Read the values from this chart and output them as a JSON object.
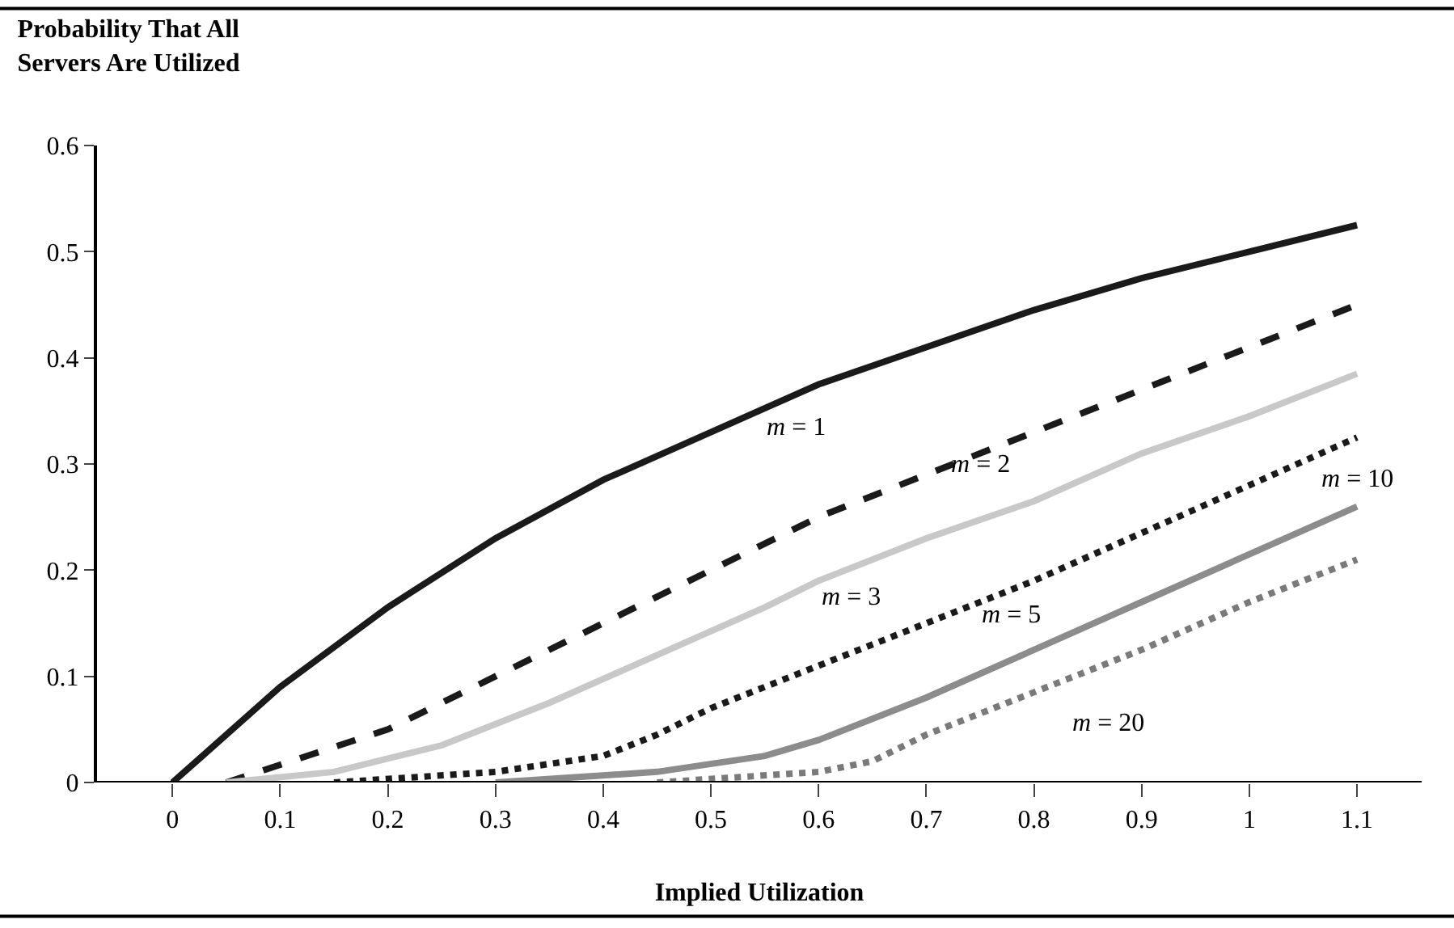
{
  "chart_data": {
    "type": "line",
    "title": "Probability That All Servers Are Utilized",
    "xlabel": "Implied Utilization",
    "xlim": [
      -0.07,
      1.16
    ],
    "xticks": [
      0,
      0.1,
      0.2,
      0.3,
      0.4,
      0.5,
      0.6,
      0.7,
      0.8,
      0.9,
      1,
      1.1
    ],
    "ylim": [
      0,
      0.6
    ],
    "yticks": [
      0,
      0.1,
      0.2,
      0.3,
      0.4,
      0.5,
      0.6
    ],
    "legend": false,
    "marker": "none",
    "series": [
      {
        "name": "m = 1",
        "color": "#1a1a1a",
        "line_style": "solid",
        "x": [
          0,
          0.1,
          0.2,
          0.3,
          0.4,
          0.5,
          0.6,
          0.7,
          0.8,
          0.9,
          1.0,
          1.1
        ],
        "values": [
          0,
          0.09,
          0.165,
          0.23,
          0.285,
          0.33,
          0.375,
          0.41,
          0.445,
          0.475,
          0.5,
          0.525
        ]
      },
      {
        "name": "m = 2",
        "color": "#1a1a1a",
        "line_style": "dashed",
        "x": [
          0.05,
          0.2,
          0.3,
          0.4,
          0.5,
          0.6,
          0.7,
          0.8,
          0.9,
          1.0,
          1.1
        ],
        "values": [
          0,
          0.05,
          0.1,
          0.15,
          0.2,
          0.25,
          0.29,
          0.33,
          0.37,
          0.41,
          0.45
        ]
      },
      {
        "name": "m = 3",
        "color": "#c8c8c8",
        "line_style": "solid",
        "x": [
          0.05,
          0.15,
          0.25,
          0.35,
          0.45,
          0.55,
          0.6,
          0.7,
          0.8,
          0.9,
          1.0,
          1.1
        ],
        "values": [
          0,
          0.01,
          0.035,
          0.075,
          0.12,
          0.165,
          0.19,
          0.23,
          0.265,
          0.31,
          0.345,
          0.385
        ]
      },
      {
        "name": "m = 5",
        "color": "#1a1a1a",
        "line_style": "dotted",
        "x": [
          0.15,
          0.3,
          0.4,
          0.45,
          0.5,
          0.6,
          0.7,
          0.8,
          0.9,
          1.0,
          1.1
        ],
        "values": [
          0,
          0.01,
          0.025,
          0.045,
          0.07,
          0.11,
          0.15,
          0.19,
          0.235,
          0.28,
          0.325
        ]
      },
      {
        "name": "m = 10",
        "color": "#8c8c8c",
        "line_style": "solid",
        "x": [
          0.3,
          0.45,
          0.55,
          0.6,
          0.7,
          0.8,
          0.9,
          1.0,
          1.1
        ],
        "values": [
          0,
          0.01,
          0.025,
          0.04,
          0.08,
          0.125,
          0.17,
          0.215,
          0.26
        ]
      },
      {
        "name": "m = 20",
        "color": "#7a7a7a",
        "line_style": "dotted",
        "x": [
          0.45,
          0.6,
          0.65,
          0.7,
          0.8,
          0.9,
          1.0,
          1.1
        ],
        "values": [
          0,
          0.01,
          0.02,
          0.045,
          0.085,
          0.125,
          0.17,
          0.21
        ]
      }
    ]
  }
}
